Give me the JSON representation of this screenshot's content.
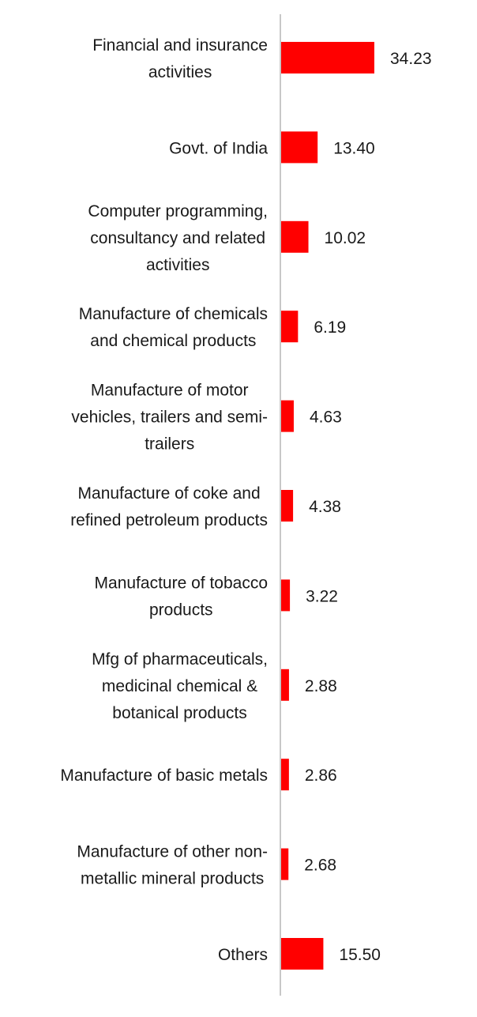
{
  "chart_data": {
    "type": "bar",
    "orientation": "horizontal",
    "title": "",
    "xlabel": "",
    "ylabel": "",
    "categories": [
      [
        "Financial and insurance",
        "activities"
      ],
      [
        "Govt. of India"
      ],
      [
        "Computer programming,",
        "consultancy and related",
        "activities"
      ],
      [
        "Manufacture of chemicals",
        "and chemical products"
      ],
      [
        "Manufacture of motor",
        "vehicles, trailers and semi-",
        "trailers"
      ],
      [
        "Manufacture of coke and",
        "refined petroleum products"
      ],
      [
        "Manufacture of tobacco",
        "products"
      ],
      [
        "Mfg of pharmaceuticals,",
        "medicinal chemical &",
        "botanical products"
      ],
      [
        "Manufacture of basic metals"
      ],
      [
        "Manufacture of other non-",
        "metallic mineral products"
      ],
      [
        "Others"
      ]
    ],
    "values": [
      34.23,
      13.4,
      10.02,
      6.19,
      4.63,
      4.38,
      3.22,
      2.88,
      2.86,
      2.68,
      15.5
    ],
    "value_labels": [
      "34.23",
      "13.40",
      "10.02",
      "6.19",
      "4.63",
      "4.38",
      "3.22",
      "2.88",
      "2.86",
      "2.68",
      "15.50"
    ],
    "xlim": [
      0,
      34.23
    ],
    "grid": false,
    "legend": "none",
    "colors": {
      "bar": "#ff0000",
      "axis": "#c8c8c8",
      "text": "#1a1a1a"
    }
  }
}
